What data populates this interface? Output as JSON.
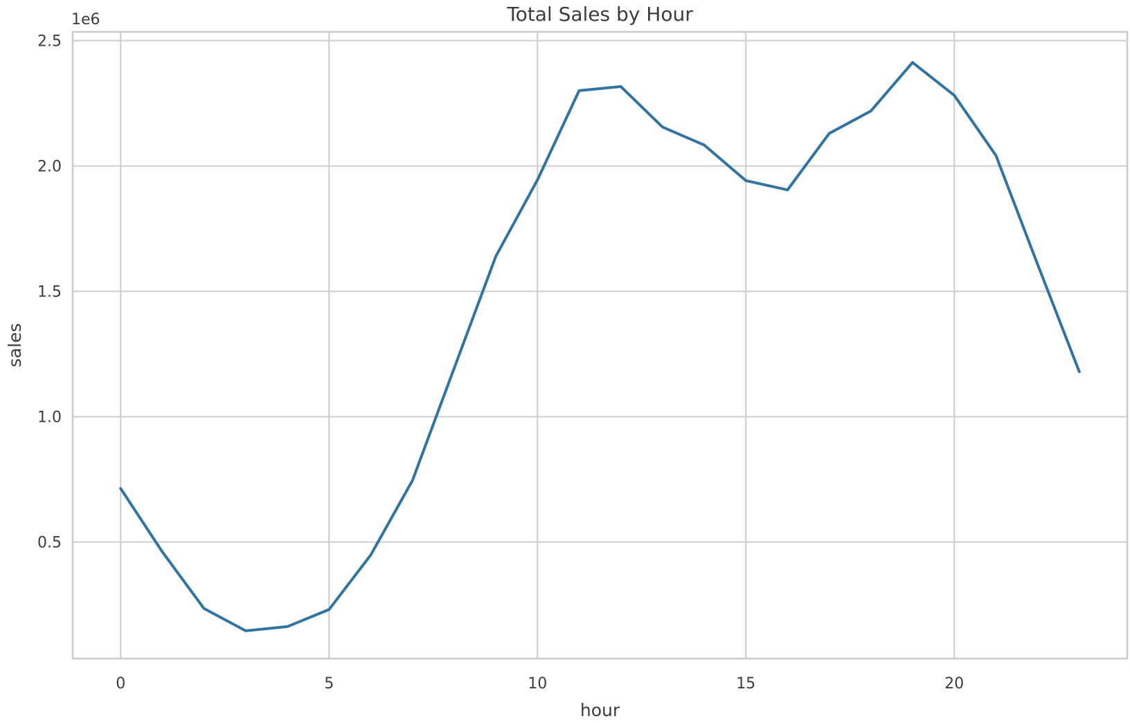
{
  "chart_data": {
    "type": "line",
    "title": "Total Sales by Hour",
    "xlabel": "hour",
    "ylabel": "sales",
    "y_offset_text": "1e6",
    "xlim": [
      -1.15,
      24.15
    ],
    "ylim": [
      0.035,
      2.535
    ],
    "x_ticks": [
      0,
      5,
      10,
      15,
      20
    ],
    "x_tick_labels": [
      "0",
      "5",
      "10",
      "15",
      "20"
    ],
    "y_ticks": [
      0.5,
      1.0,
      1.5,
      2.0,
      2.5
    ],
    "y_tick_labels": [
      "0.5",
      "1.0",
      "1.5",
      "2.0",
      "2.5"
    ],
    "y_scale_factor": 1000000,
    "grid": true,
    "line_color": "#3274a1",
    "series": [
      {
        "x": [
          0,
          1,
          2,
          3,
          4,
          5,
          6,
          7,
          8,
          9,
          10,
          11,
          12,
          13,
          14,
          15,
          16,
          17,
          18,
          19,
          20,
          21,
          22,
          23
        ],
        "values": [
          713721,
          460866,
          234851,
          145757,
          162661,
          230679,
          448113,
          744854,
          1192348,
          1639030,
          1944286,
          2300610,
          2316821,
          2155389,
          2083672,
          1941549,
          1904601,
          2129776,
          2219348,
          2412939,
          2281716,
          2042000,
          1607549,
          1179304
        ]
      }
    ]
  }
}
